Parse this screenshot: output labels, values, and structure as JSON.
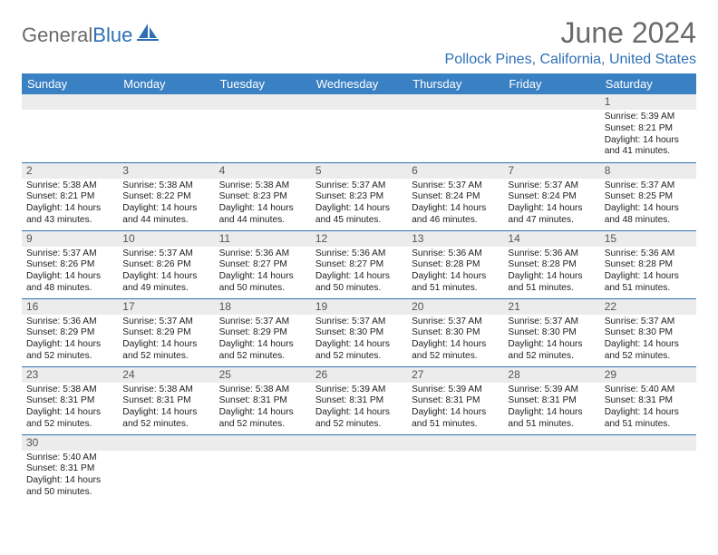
{
  "logo": {
    "gray": "General",
    "blue": "Blue"
  },
  "title": "June 2024",
  "location": "Pollock Pines, California, United States",
  "colors": {
    "header_bg": "#3a81c4",
    "header_text": "#ffffff",
    "border": "#2e6fb5",
    "daynum_bg": "#ececec",
    "title_color": "#6a6a6a",
    "location_color": "#2e6fb5"
  },
  "weekday_headers": [
    "Sunday",
    "Monday",
    "Tuesday",
    "Wednesday",
    "Thursday",
    "Friday",
    "Saturday"
  ],
  "grid": [
    [
      null,
      null,
      null,
      null,
      null,
      null,
      {
        "n": "1",
        "sr": "5:39 AM",
        "ss": "8:21 PM",
        "dl": "14 hours and 41 minutes."
      }
    ],
    [
      {
        "n": "2",
        "sr": "5:38 AM",
        "ss": "8:21 PM",
        "dl": "14 hours and 43 minutes."
      },
      {
        "n": "3",
        "sr": "5:38 AM",
        "ss": "8:22 PM",
        "dl": "14 hours and 44 minutes."
      },
      {
        "n": "4",
        "sr": "5:38 AM",
        "ss": "8:23 PM",
        "dl": "14 hours and 44 minutes."
      },
      {
        "n": "5",
        "sr": "5:37 AM",
        "ss": "8:23 PM",
        "dl": "14 hours and 45 minutes."
      },
      {
        "n": "6",
        "sr": "5:37 AM",
        "ss": "8:24 PM",
        "dl": "14 hours and 46 minutes."
      },
      {
        "n": "7",
        "sr": "5:37 AM",
        "ss": "8:24 PM",
        "dl": "14 hours and 47 minutes."
      },
      {
        "n": "8",
        "sr": "5:37 AM",
        "ss": "8:25 PM",
        "dl": "14 hours and 48 minutes."
      }
    ],
    [
      {
        "n": "9",
        "sr": "5:37 AM",
        "ss": "8:26 PM",
        "dl": "14 hours and 48 minutes."
      },
      {
        "n": "10",
        "sr": "5:37 AM",
        "ss": "8:26 PM",
        "dl": "14 hours and 49 minutes."
      },
      {
        "n": "11",
        "sr": "5:36 AM",
        "ss": "8:27 PM",
        "dl": "14 hours and 50 minutes."
      },
      {
        "n": "12",
        "sr": "5:36 AM",
        "ss": "8:27 PM",
        "dl": "14 hours and 50 minutes."
      },
      {
        "n": "13",
        "sr": "5:36 AM",
        "ss": "8:28 PM",
        "dl": "14 hours and 51 minutes."
      },
      {
        "n": "14",
        "sr": "5:36 AM",
        "ss": "8:28 PM",
        "dl": "14 hours and 51 minutes."
      },
      {
        "n": "15",
        "sr": "5:36 AM",
        "ss": "8:28 PM",
        "dl": "14 hours and 51 minutes."
      }
    ],
    [
      {
        "n": "16",
        "sr": "5:36 AM",
        "ss": "8:29 PM",
        "dl": "14 hours and 52 minutes."
      },
      {
        "n": "17",
        "sr": "5:37 AM",
        "ss": "8:29 PM",
        "dl": "14 hours and 52 minutes."
      },
      {
        "n": "18",
        "sr": "5:37 AM",
        "ss": "8:29 PM",
        "dl": "14 hours and 52 minutes."
      },
      {
        "n": "19",
        "sr": "5:37 AM",
        "ss": "8:30 PM",
        "dl": "14 hours and 52 minutes."
      },
      {
        "n": "20",
        "sr": "5:37 AM",
        "ss": "8:30 PM",
        "dl": "14 hours and 52 minutes."
      },
      {
        "n": "21",
        "sr": "5:37 AM",
        "ss": "8:30 PM",
        "dl": "14 hours and 52 minutes."
      },
      {
        "n": "22",
        "sr": "5:37 AM",
        "ss": "8:30 PM",
        "dl": "14 hours and 52 minutes."
      }
    ],
    [
      {
        "n": "23",
        "sr": "5:38 AM",
        "ss": "8:31 PM",
        "dl": "14 hours and 52 minutes."
      },
      {
        "n": "24",
        "sr": "5:38 AM",
        "ss": "8:31 PM",
        "dl": "14 hours and 52 minutes."
      },
      {
        "n": "25",
        "sr": "5:38 AM",
        "ss": "8:31 PM",
        "dl": "14 hours and 52 minutes."
      },
      {
        "n": "26",
        "sr": "5:39 AM",
        "ss": "8:31 PM",
        "dl": "14 hours and 52 minutes."
      },
      {
        "n": "27",
        "sr": "5:39 AM",
        "ss": "8:31 PM",
        "dl": "14 hours and 51 minutes."
      },
      {
        "n": "28",
        "sr": "5:39 AM",
        "ss": "8:31 PM",
        "dl": "14 hours and 51 minutes."
      },
      {
        "n": "29",
        "sr": "5:40 AM",
        "ss": "8:31 PM",
        "dl": "14 hours and 51 minutes."
      }
    ],
    [
      {
        "n": "30",
        "sr": "5:40 AM",
        "ss": "8:31 PM",
        "dl": "14 hours and 50 minutes."
      },
      null,
      null,
      null,
      null,
      null,
      null
    ]
  ],
  "labels": {
    "sunrise": "Sunrise: ",
    "sunset": "Sunset: ",
    "daylight": "Daylight: "
  }
}
